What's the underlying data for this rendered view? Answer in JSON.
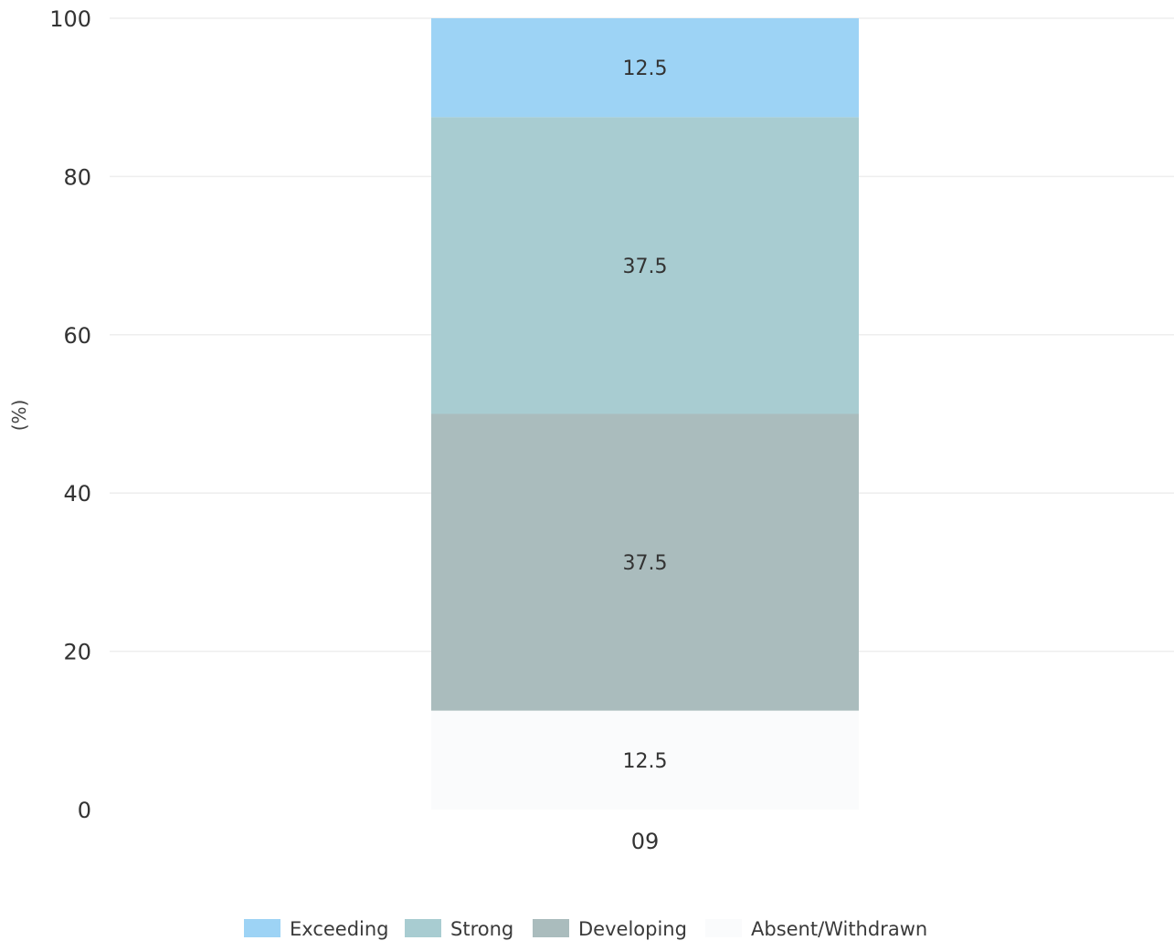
{
  "chart_data": {
    "type": "bar",
    "stacked": true,
    "categories": [
      "09"
    ],
    "series": [
      {
        "name": "Absent/Withdrawn",
        "values": [
          12.5
        ],
        "color": "#fafbfc"
      },
      {
        "name": "Developing",
        "values": [
          37.5
        ],
        "color": "#aabcbd"
      },
      {
        "name": "Strong",
        "values": [
          37.5
        ],
        "color": "#a8ccd1"
      },
      {
        "name": "Exceeding",
        "values": [
          12.5
        ],
        "color": "#9dd3f5"
      }
    ],
    "legend_order": [
      "Exceeding",
      "Strong",
      "Developing",
      "Absent/Withdrawn"
    ],
    "ylabel": "(%)",
    "xlabel": "",
    "ylim": [
      0,
      100
    ],
    "yticks": [
      0,
      20,
      40,
      60,
      80,
      100
    ],
    "grid": true,
    "data_labels": true,
    "legend_position": "bottom-center"
  }
}
